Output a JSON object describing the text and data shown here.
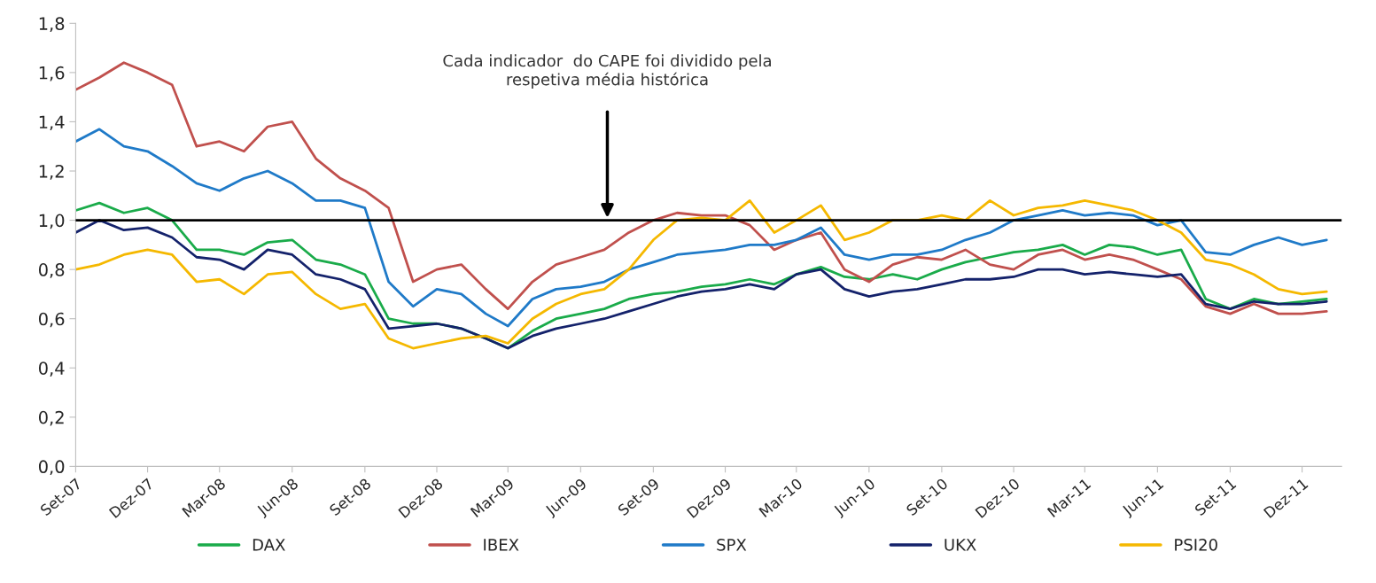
{
  "chart_data": {
    "type": "line",
    "annotations": [
      "Cada indicador  do CAPE foi dividido pela\nrespetiva média histórica"
    ],
    "x": [
      "2007-09",
      "2007-10",
      "2007-11",
      "2007-12",
      "2008-01",
      "2008-02",
      "2008-03",
      "2008-04",
      "2008-05",
      "2008-06",
      "2008-07",
      "2008-08",
      "2008-09",
      "2008-10",
      "2008-11",
      "2008-12",
      "2009-01",
      "2009-02",
      "2009-03",
      "2009-04",
      "2009-05",
      "2009-06",
      "2009-07",
      "2009-08",
      "2009-09",
      "2009-10",
      "2009-11",
      "2009-12",
      "2010-01",
      "2010-02",
      "2010-03",
      "2010-04",
      "2010-05",
      "2010-06",
      "2010-07",
      "2010-08",
      "2010-09",
      "2010-10",
      "2010-11",
      "2010-12",
      "2011-01",
      "2011-02",
      "2011-03",
      "2011-04",
      "2011-05",
      "2011-06",
      "2011-07",
      "2011-08",
      "2011-09",
      "2011-10",
      "2011-11",
      "2011-12",
      "2012-01"
    ],
    "series": [
      {
        "name": "DAX",
        "color": "#1aab4a",
        "values": [
          1.04,
          1.07,
          1.03,
          1.05,
          1.0,
          0.88,
          0.88,
          0.86,
          0.91,
          0.92,
          0.84,
          0.82,
          0.78,
          0.6,
          0.58,
          0.58,
          0.56,
          0.52,
          0.48,
          0.55,
          0.6,
          0.62,
          0.64,
          0.68,
          0.7,
          0.71,
          0.73,
          0.74,
          0.76,
          0.74,
          0.78,
          0.81,
          0.77,
          0.76,
          0.78,
          0.76,
          0.8,
          0.83,
          0.85,
          0.87,
          0.88,
          0.9,
          0.86,
          0.9,
          0.89,
          0.86,
          0.88,
          0.68,
          0.64,
          0.68,
          0.66,
          0.67,
          0.68
        ]
      },
      {
        "name": "IBEX",
        "color": "#c0504d",
        "values": [
          1.53,
          1.58,
          1.64,
          1.6,
          1.55,
          1.3,
          1.32,
          1.28,
          1.38,
          1.4,
          1.25,
          1.17,
          1.12,
          1.05,
          0.75,
          0.8,
          0.82,
          0.72,
          0.64,
          0.75,
          0.82,
          0.85,
          0.88,
          0.95,
          1.0,
          1.03,
          1.02,
          1.02,
          0.98,
          0.88,
          0.92,
          0.95,
          0.8,
          0.75,
          0.82,
          0.85,
          0.84,
          0.88,
          0.82,
          0.8,
          0.86,
          0.88,
          0.84,
          0.86,
          0.84,
          0.8,
          0.76,
          0.65,
          0.62,
          0.66,
          0.62,
          0.62,
          0.63
        ]
      },
      {
        "name": "SPX",
        "color": "#1f7ac8",
        "values": [
          1.32,
          1.37,
          1.3,
          1.28,
          1.22,
          1.15,
          1.12,
          1.17,
          1.2,
          1.15,
          1.08,
          1.08,
          1.05,
          0.75,
          0.65,
          0.72,
          0.7,
          0.62,
          0.57,
          0.68,
          0.72,
          0.73,
          0.75,
          0.8,
          0.83,
          0.86,
          0.87,
          0.88,
          0.9,
          0.9,
          0.92,
          0.97,
          0.86,
          0.84,
          0.86,
          0.86,
          0.88,
          0.92,
          0.95,
          1.0,
          1.02,
          1.04,
          1.02,
          1.03,
          1.02,
          0.98,
          1.0,
          0.87,
          0.86,
          0.9,
          0.93,
          0.9,
          0.92
        ]
      },
      {
        "name": "UKX",
        "color": "#14226b",
        "values": [
          0.95,
          1.0,
          0.96,
          0.97,
          0.93,
          0.85,
          0.84,
          0.8,
          0.88,
          0.86,
          0.78,
          0.76,
          0.72,
          0.56,
          0.57,
          0.58,
          0.56,
          0.52,
          0.48,
          0.53,
          0.56,
          0.58,
          0.6,
          0.63,
          0.66,
          0.69,
          0.71,
          0.72,
          0.74,
          0.72,
          0.78,
          0.8,
          0.72,
          0.69,
          0.71,
          0.72,
          0.74,
          0.76,
          0.76,
          0.77,
          0.8,
          0.8,
          0.78,
          0.79,
          0.78,
          0.77,
          0.78,
          0.66,
          0.64,
          0.67,
          0.66,
          0.66,
          0.67
        ]
      },
      {
        "name": "PSI20",
        "color": "#f5b800",
        "values": [
          0.8,
          0.82,
          0.86,
          0.88,
          0.86,
          0.75,
          0.76,
          0.7,
          0.78,
          0.79,
          0.7,
          0.64,
          0.66,
          0.52,
          0.48,
          0.5,
          0.52,
          0.53,
          0.5,
          0.6,
          0.66,
          0.7,
          0.72,
          0.8,
          0.92,
          1.0,
          1.01,
          1.0,
          1.08,
          0.95,
          1.0,
          1.06,
          0.92,
          0.95,
          1.0,
          1.0,
          1.02,
          1.0,
          1.08,
          1.02,
          1.05,
          1.06,
          1.08,
          1.06,
          1.04,
          1.0,
          0.95,
          0.84,
          0.82,
          0.78,
          0.72,
          0.7,
          0.71
        ]
      }
    ],
    "xlim": [
      "2007-09-01",
      "2012-01-20"
    ],
    "xticks": [
      {
        "value": "2007-09",
        "label": "Set-07"
      },
      {
        "value": "2007-12",
        "label": "Dez-07"
      },
      {
        "value": "2008-03",
        "label": "Mar-08"
      },
      {
        "value": "2008-06",
        "label": "Jun-08"
      },
      {
        "value": "2008-09",
        "label": "Set-08"
      },
      {
        "value": "2008-12",
        "label": "Dez-08"
      },
      {
        "value": "2009-03",
        "label": "Mar-09"
      },
      {
        "value": "2009-06",
        "label": "Jun-09"
      },
      {
        "value": "2009-09",
        "label": "Set-09"
      },
      {
        "value": "2009-12",
        "label": "Dez-09"
      },
      {
        "value": "2010-03",
        "label": "Mar-10"
      },
      {
        "value": "2010-06",
        "label": "Jun-10"
      },
      {
        "value": "2010-09",
        "label": "Set-10"
      },
      {
        "value": "2010-12",
        "label": "Dez-10"
      },
      {
        "value": "2011-03",
        "label": "Mar-11"
      },
      {
        "value": "2011-06",
        "label": "Jun-11"
      },
      {
        "value": "2011-09",
        "label": "Set-11"
      },
      {
        "value": "2011-12",
        "label": "Dez-11"
      }
    ],
    "ylim": [
      0,
      1.8
    ],
    "yticks": [
      {
        "value": 0,
        "label": "0,0"
      },
      {
        "value": 0.2,
        "label": "0,2"
      },
      {
        "value": 0.4,
        "label": "0,4"
      },
      {
        "value": 0.6,
        "label": "0,6"
      },
      {
        "value": 0.8,
        "label": "0,8"
      },
      {
        "value": 1.0,
        "label": "1,0"
      },
      {
        "value": 1.2,
        "label": "1,2"
      },
      {
        "value": 1.4,
        "label": "1,4"
      },
      {
        "value": 1.6,
        "label": "1,6"
      },
      {
        "value": 1.8,
        "label": "1,8"
      }
    ],
    "ref_lines": [
      {
        "axis": "y",
        "value": 1.0,
        "color": "#000000",
        "line_style": "solid"
      }
    ],
    "grid": false,
    "legend": "bottom",
    "marker": "none",
    "line_style": "solid"
  }
}
